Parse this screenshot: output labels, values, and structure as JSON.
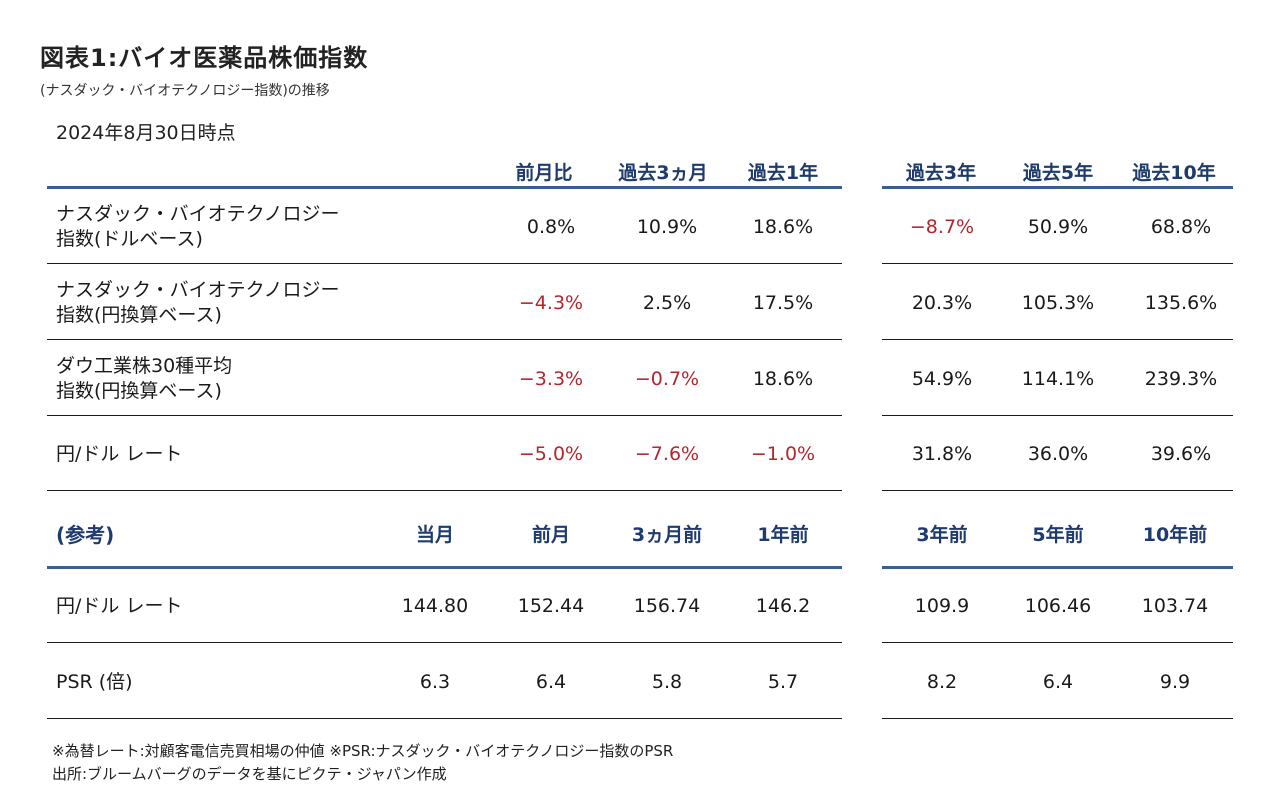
{
  "title": "図表1:バイオ医薬品株価指数",
  "subtitle": "(ナスダック・バイオテクノロジー指数)の推移",
  "date": "2024年8月30日時点",
  "top_headers": [
    "前月比",
    "過去3ヵ月",
    "過去1年",
    "過去3年",
    "過去5年",
    "過去10年"
  ],
  "top_rows": [
    {
      "label1": "ナスダック・バイオテクノロジー",
      "label2": "指数(ドルベース)",
      "values": [
        "0.8%",
        "10.9%",
        "18.6%",
        "−8.7%",
        "50.9%",
        "68.8%"
      ],
      "negative": [
        false,
        false,
        false,
        true,
        false,
        false
      ]
    },
    {
      "label1": "ナスダック・バイオテクノロジー",
      "label2": "指数(円換算ベース)",
      "values": [
        "−4.3%",
        "2.5%",
        "17.5%",
        "20.3%",
        "105.3%",
        "135.6%"
      ],
      "negative": [
        true,
        false,
        false,
        false,
        false,
        false
      ]
    },
    {
      "label1": "ダウ工業株30種平均",
      "label2": "指数(円換算ベース)",
      "values": [
        "−3.3%",
        "−0.7%",
        "18.6%",
        "54.9%",
        "114.1%",
        "239.3%"
      ],
      "negative": [
        true,
        true,
        false,
        false,
        false,
        false
      ]
    },
    {
      "label1": "円/ドル レート",
      "label2": "",
      "values": [
        "−5.0%",
        "−7.6%",
        "−1.0%",
        "31.8%",
        "36.0%",
        "39.6%"
      ],
      "negative": [
        true,
        true,
        true,
        false,
        false,
        false
      ]
    }
  ],
  "ref_label": "(参考)",
  "ref_headers": [
    "当月",
    "前月",
    "3ヵ月前",
    "1年前",
    "3年前",
    "5年前",
    "10年前"
  ],
  "ref_rows": [
    {
      "label": "円/ドル レート",
      "values": [
        "144.80",
        "152.44",
        "156.74",
        "146.2",
        "109.9",
        "106.46",
        "103.74"
      ]
    },
    {
      "label": "PSR (倍)",
      "values": [
        "6.3",
        "6.4",
        "5.8",
        "5.7",
        "8.2",
        "6.4",
        "9.9"
      ]
    }
  ],
  "notes": [
    "※為替レート:対顧客電信売買相場の仲値 ※PSR:ナスダック・バイオテクノロジー指数のPSR",
    "出所:ブルームバーグのデータを基にピクテ・ジャパン作成"
  ]
}
